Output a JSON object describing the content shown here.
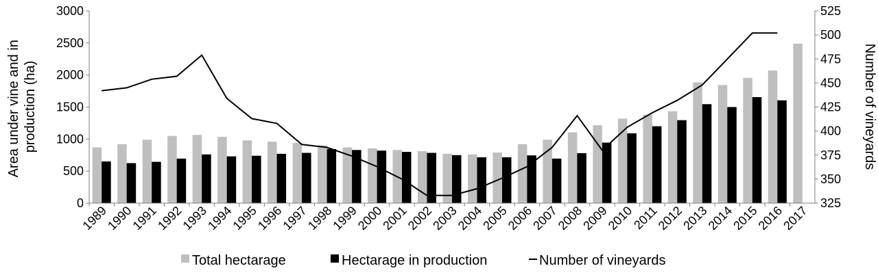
{
  "chart_data": {
    "type": "bar",
    "title": "",
    "categories": [
      "1989",
      "1990",
      "1991",
      "1992",
      "1993",
      "1994",
      "1995",
      "1996",
      "1997",
      "1998",
      "1999",
      "2000",
      "2001",
      "2002",
      "2003",
      "2004",
      "2005",
      "2006",
      "2007",
      "2008",
      "2009",
      "2010",
      "2011",
      "2012",
      "2013",
      "2014",
      "2015",
      "2016",
      "2017"
    ],
    "series": [
      {
        "name": "Total hectarage",
        "type": "bar",
        "axis": "left",
        "color": "#bfbfbf",
        "values": [
          870,
          920,
          990,
          1050,
          1065,
          1035,
          980,
          960,
          940,
          900,
          870,
          855,
          830,
          810,
          770,
          760,
          790,
          920,
          990,
          1105,
          1215,
          1320,
          1380,
          1435,
          1885,
          1845,
          1955,
          2070,
          2490
        ]
      },
      {
        "name": "Hectarage in production",
        "type": "bar",
        "axis": "left",
        "color": "#000000",
        "values": [
          650,
          625,
          645,
          695,
          760,
          730,
          740,
          770,
          785,
          845,
          830,
          820,
          800,
          785,
          750,
          715,
          715,
          745,
          695,
          780,
          945,
          1090,
          1200,
          1295,
          1545,
          1500,
          1655,
          1605,
          null
        ]
      },
      {
        "name": "Number of vineyards",
        "type": "line",
        "axis": "right",
        "color": "#000000",
        "values": [
          442,
          445,
          454,
          457,
          479,
          434,
          413,
          408,
          386,
          383,
          374,
          363,
          350,
          333,
          333,
          340,
          351,
          363,
          383,
          416,
          380,
          404,
          419,
          432,
          448,
          475,
          502,
          502,
          null
        ]
      }
    ],
    "left_axis": {
      "label": "Area under vine and in production (ha)",
      "ylim": [
        0,
        3000
      ],
      "ticks": [
        "0",
        "500",
        "1000",
        "1500",
        "2000",
        "2500",
        "3000"
      ]
    },
    "right_axis": {
      "label": "Number of vineyards",
      "ylim": [
        325,
        525
      ],
      "ticks": [
        "325",
        "350",
        "375",
        "400",
        "425",
        "450",
        "475",
        "500",
        "525"
      ]
    },
    "xlabel": "",
    "grid": false,
    "legend_position": "bottom"
  }
}
